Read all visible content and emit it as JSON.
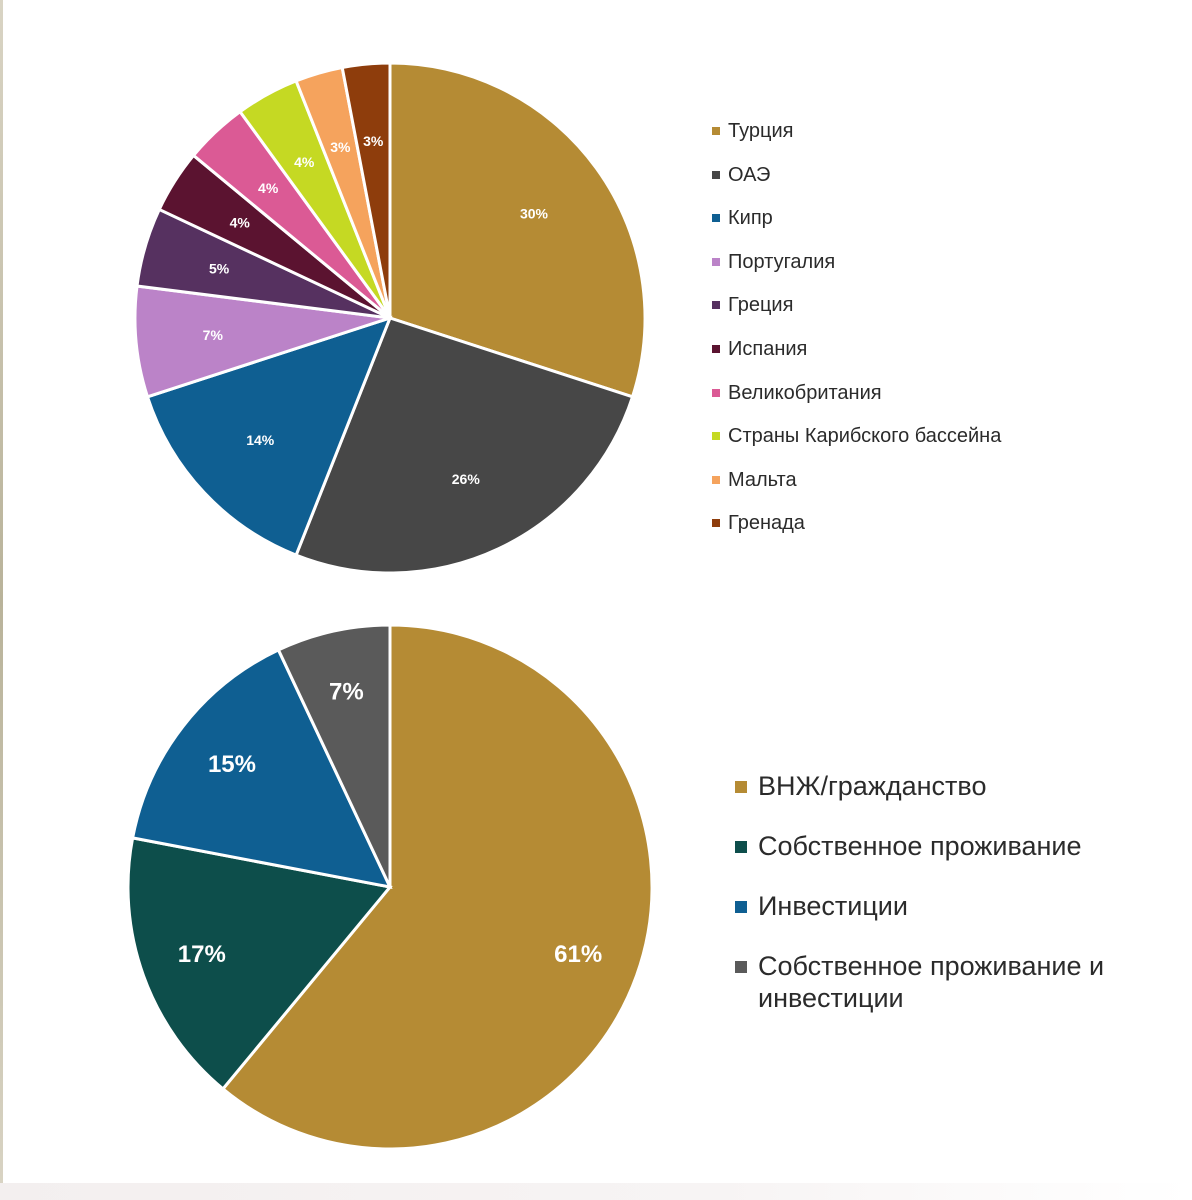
{
  "chart_data": [
    {
      "type": "pie",
      "slices": [
        {
          "label": "Турция",
          "value": 30,
          "display": "30%",
          "color": "#b58b34"
        },
        {
          "label": "ОАЭ",
          "value": 26,
          "display": "26%",
          "color": "#474747"
        },
        {
          "label": "Кипр",
          "value": 14,
          "display": "14%",
          "color": "#0f5f92"
        },
        {
          "label": "Португалия",
          "value": 7,
          "display": "7%",
          "color": "#bb83c8"
        },
        {
          "label": "Греция",
          "value": 5,
          "display": "5%",
          "color": "#563160"
        },
        {
          "label": "Испания",
          "value": 4,
          "display": "4%",
          "color": "#5b1330"
        },
        {
          "label": "Великобритания",
          "value": 4,
          "display": "4%",
          "color": "#db5a95"
        },
        {
          "label": "Страны Карибского бассейна",
          "value": 4,
          "display": "4%",
          "color": "#c5d923"
        },
        {
          "label": "Мальта",
          "value": 3,
          "display": "3%",
          "color": "#f5a35d"
        },
        {
          "label": "Гренада",
          "value": 3,
          "display": "3%",
          "color": "#8e3d0c"
        }
      ],
      "legend_position": "right"
    },
    {
      "type": "pie",
      "slices": [
        {
          "label": "ВНЖ/гражданство",
          "value": 61,
          "display": "61%",
          "color": "#b58b34"
        },
        {
          "label": "Собственное проживание",
          "value": 17,
          "display": "17%",
          "color": "#0d4e4b"
        },
        {
          "label": "Инвестиции",
          "value": 15,
          "display": "15%",
          "color": "#0f5f92"
        },
        {
          "label": "Собственное проживание и инвестиции",
          "value": 7,
          "display": "7%",
          "color": "#5a5a5a"
        }
      ],
      "legend_position": "right"
    }
  ]
}
